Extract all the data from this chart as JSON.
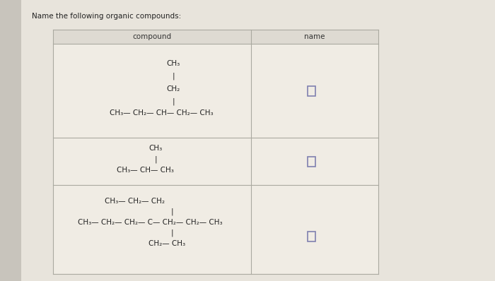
{
  "title": "Name the following organic compounds:",
  "col1_header": "compound",
  "col2_header": "name",
  "page_bg": "#c8c4bc",
  "content_bg": "#e8e4dc",
  "table_bg": "#f0ece4",
  "header_bg": "#dedad2",
  "border_color": "#aaa9a0",
  "text_color": "#222222",
  "header_text_color": "#333333",
  "checkbox_color": "#8080b0"
}
